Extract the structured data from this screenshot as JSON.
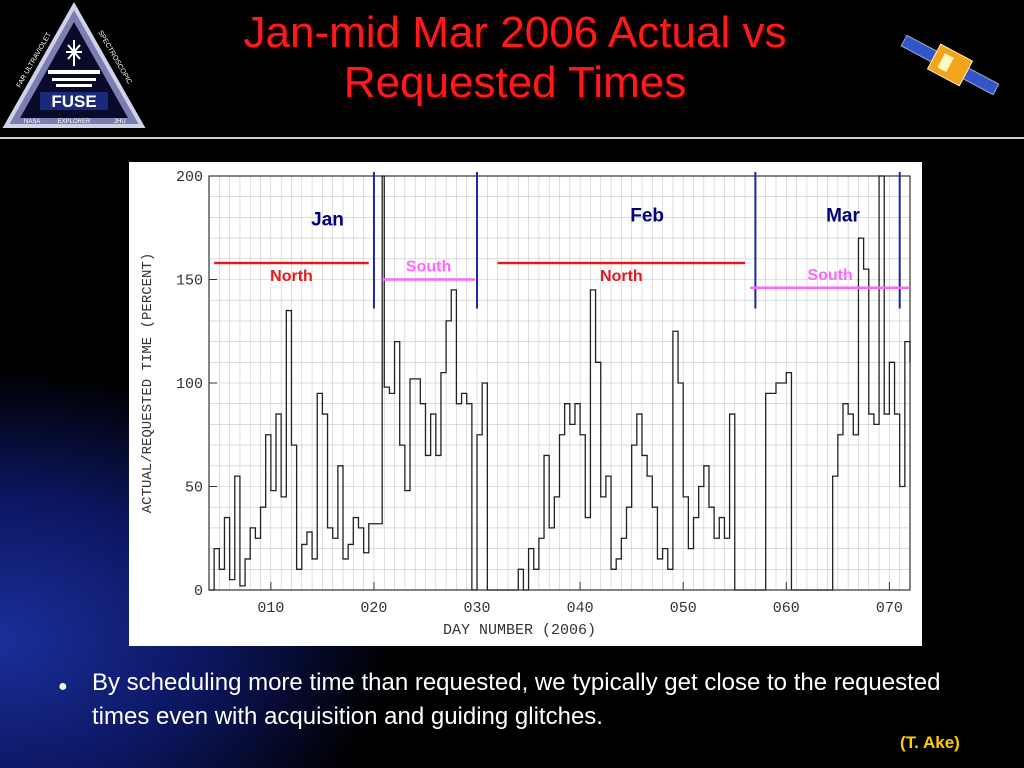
{
  "slide": {
    "title_line1": "Jan-mid Mar 2006 Actual vs",
    "title_line2": "Requested Times",
    "bullet": "By scheduling more time than requested, we typically get close to the requested times even with acquisition and guiding glitches.",
    "credit": "(T. Ake)"
  },
  "logo": {
    "name": "FUSE",
    "ring_left": "FAR ULTRAVIOLET",
    "ring_right": "SPECTROSCOPIC",
    "ring_bottom_left": "NASA",
    "ring_bottom_mid": "EXPLORER",
    "ring_bottom_right": "JHU"
  },
  "chart_data": {
    "type": "line",
    "xlabel": "DAY NUMBER (2006)",
    "ylabel": "ACTUAL/REQUESTED TIME (PERCENT)",
    "xlim": [
      4,
      72
    ],
    "ylim": [
      0,
      200
    ],
    "xticks": [
      10,
      20,
      30,
      40,
      50,
      60,
      70
    ],
    "xtick_labels": [
      "010",
      "020",
      "030",
      "040",
      "050",
      "060",
      "070"
    ],
    "yticks": [
      0,
      50,
      100,
      150,
      200
    ],
    "ytick_labels": [
      "0",
      "50",
      "100",
      "150",
      "200"
    ],
    "grid": true,
    "series": [
      {
        "values": [
          [
            4,
            0
          ],
          [
            4.5,
            20
          ],
          [
            5,
            10
          ],
          [
            5.5,
            35
          ],
          [
            6,
            5
          ],
          [
            6.5,
            55
          ],
          [
            7,
            2
          ],
          [
            7.5,
            15
          ],
          [
            8,
            30
          ],
          [
            8.5,
            25
          ],
          [
            9,
            40
          ],
          [
            9.5,
            75
          ],
          [
            10,
            48
          ],
          [
            10.5,
            85
          ],
          [
            11,
            45
          ],
          [
            11.5,
            135
          ],
          [
            12,
            70
          ],
          [
            12.5,
            10
          ],
          [
            13,
            22
          ],
          [
            13.5,
            28
          ],
          [
            14,
            15
          ],
          [
            14.5,
            95
          ],
          [
            15,
            85
          ],
          [
            15.5,
            30
          ],
          [
            16,
            25
          ],
          [
            16.5,
            60
          ],
          [
            17,
            15
          ],
          [
            17.5,
            22
          ],
          [
            18,
            35
          ],
          [
            18.5,
            30
          ],
          [
            19,
            18
          ],
          [
            19.5,
            32
          ],
          [
            20,
            32
          ],
          [
            20.3,
            32
          ],
          [
            20.8,
            200
          ],
          [
            21,
            98
          ],
          [
            21.5,
            95
          ],
          [
            22,
            120
          ],
          [
            22.5,
            70
          ],
          [
            23,
            48
          ],
          [
            23.5,
            102
          ],
          [
            24,
            102
          ],
          [
            24.5,
            90
          ],
          [
            25,
            65
          ],
          [
            25.5,
            85
          ],
          [
            26,
            65
          ],
          [
            26.5,
            105
          ],
          [
            27,
            130
          ],
          [
            27.5,
            145
          ],
          [
            28,
            90
          ],
          [
            28.5,
            95
          ],
          [
            29,
            90
          ],
          [
            29.5,
            0
          ],
          [
            30,
            75
          ],
          [
            30.5,
            100
          ],
          [
            31,
            0
          ],
          [
            34,
            10
          ],
          [
            34.5,
            0
          ],
          [
            35,
            20
          ],
          [
            35.5,
            10
          ],
          [
            36,
            25
          ],
          [
            36.5,
            65
          ],
          [
            37,
            30
          ],
          [
            37.5,
            45
          ],
          [
            38,
            75
          ],
          [
            38.5,
            90
          ],
          [
            39,
            80
          ],
          [
            39.5,
            90
          ],
          [
            40,
            75
          ],
          [
            40.5,
            35
          ],
          [
            41,
            145
          ],
          [
            41.5,
            110
          ],
          [
            42,
            45
          ],
          [
            42.5,
            55
          ],
          [
            43,
            10
          ],
          [
            43.5,
            15
          ],
          [
            44,
            25
          ],
          [
            44.5,
            40
          ],
          [
            45,
            70
          ],
          [
            45.5,
            85
          ],
          [
            46,
            65
          ],
          [
            46.5,
            55
          ],
          [
            47,
            40
          ],
          [
            47.5,
            15
          ],
          [
            48,
            20
          ],
          [
            48.5,
            10
          ],
          [
            49,
            125
          ],
          [
            49.5,
            100
          ],
          [
            50,
            45
          ],
          [
            50.5,
            20
          ],
          [
            51,
            35
          ],
          [
            51.5,
            50
          ],
          [
            52,
            60
          ],
          [
            52.5,
            40
          ],
          [
            53,
            25
          ],
          [
            53.5,
            35
          ],
          [
            54,
            25
          ],
          [
            54.5,
            85
          ],
          [
            55,
            0
          ],
          [
            58,
            95
          ],
          [
            58.5,
            95
          ],
          [
            59,
            100
          ],
          [
            59.5,
            100
          ],
          [
            60,
            105
          ],
          [
            60.5,
            0
          ],
          [
            64,
            0
          ],
          [
            64.5,
            55
          ],
          [
            65,
            75
          ],
          [
            65.5,
            90
          ],
          [
            66,
            85
          ],
          [
            66.5,
            75
          ],
          [
            67,
            170
          ],
          [
            67.5,
            155
          ],
          [
            68,
            85
          ],
          [
            68.5,
            80
          ],
          [
            69,
            200
          ],
          [
            69.5,
            85
          ],
          [
            70,
            110
          ],
          [
            70.5,
            85
          ],
          [
            71,
            50
          ],
          [
            71.5,
            120
          ],
          [
            72,
            110
          ]
        ]
      }
    ],
    "markers": {
      "vlines": [
        20,
        30,
        57,
        71
      ],
      "segments": [
        {
          "label": "North",
          "x0": 4.5,
          "x1": 19.5,
          "y": 158,
          "color": "#e11b1b"
        },
        {
          "label": "South",
          "x0": 20.8,
          "x1": 29.8,
          "y": 150,
          "color": "#ff66ff"
        },
        {
          "label": "North",
          "x0": 32,
          "x1": 56,
          "y": 158,
          "color": "#e11b1b"
        },
        {
          "label": "South",
          "x0": 56.5,
          "x1": 72,
          "y": 146,
          "color": "#ff66ff"
        }
      ],
      "months": [
        {
          "label": "Jan",
          "x": 15.5,
          "y": 176
        },
        {
          "label": "Feb",
          "x": 46.5,
          "y": 178
        },
        {
          "label": "Mar",
          "x": 65.5,
          "y": 178
        }
      ],
      "month_color": "#000080"
    }
  },
  "colors": {
    "title": "#ff1a1a",
    "credit": "#ffcc00",
    "bullet_text": "#ffffff",
    "background": "#000000"
  }
}
